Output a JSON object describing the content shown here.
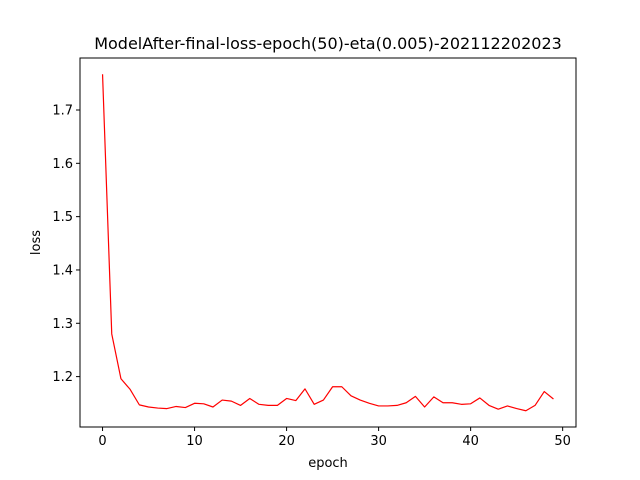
{
  "chart_data": {
    "type": "line",
    "title": "ModelAfter-final-loss-epoch(50)-eta(0.005)-202112202023",
    "xlabel": "epoch",
    "ylabel": "loss",
    "xlim": [
      -2.45,
      51.45
    ],
    "ylim": [
      1.1055,
      1.7975
    ],
    "xticks": [
      0,
      10,
      20,
      30,
      40,
      50
    ],
    "yticks": [
      1.2,
      1.3,
      1.4,
      1.5,
      1.6,
      1.7
    ],
    "ytick_labels": [
      "1.2",
      "1.3",
      "1.4",
      "1.5",
      "1.6",
      "1.7"
    ],
    "grid": false,
    "series": [
      {
        "color": "#ff0000",
        "x": [
          0,
          1,
          2,
          3,
          4,
          5,
          6,
          7,
          8,
          9,
          10,
          11,
          12,
          13,
          14,
          15,
          16,
          17,
          18,
          19,
          20,
          21,
          22,
          23,
          24,
          25,
          26,
          27,
          28,
          29,
          30,
          31,
          32,
          33,
          34,
          35,
          36,
          37,
          38,
          39,
          40,
          41,
          42,
          43,
          44,
          45,
          46,
          47,
          48,
          49
        ],
        "y": [
          1.767,
          1.28,
          1.196,
          1.176,
          1.147,
          1.143,
          1.141,
          1.14,
          1.144,
          1.142,
          1.15,
          1.149,
          1.143,
          1.156,
          1.154,
          1.146,
          1.159,
          1.148,
          1.146,
          1.146,
          1.159,
          1.155,
          1.177,
          1.148,
          1.156,
          1.181,
          1.181,
          1.164,
          1.156,
          1.15,
          1.145,
          1.145,
          1.146,
          1.151,
          1.163,
          1.143,
          1.162,
          1.151,
          1.151,
          1.148,
          1.149,
          1.16,
          1.146,
          1.139,
          1.145,
          1.14,
          1.136,
          1.146,
          1.172,
          1.158
        ]
      }
    ]
  }
}
